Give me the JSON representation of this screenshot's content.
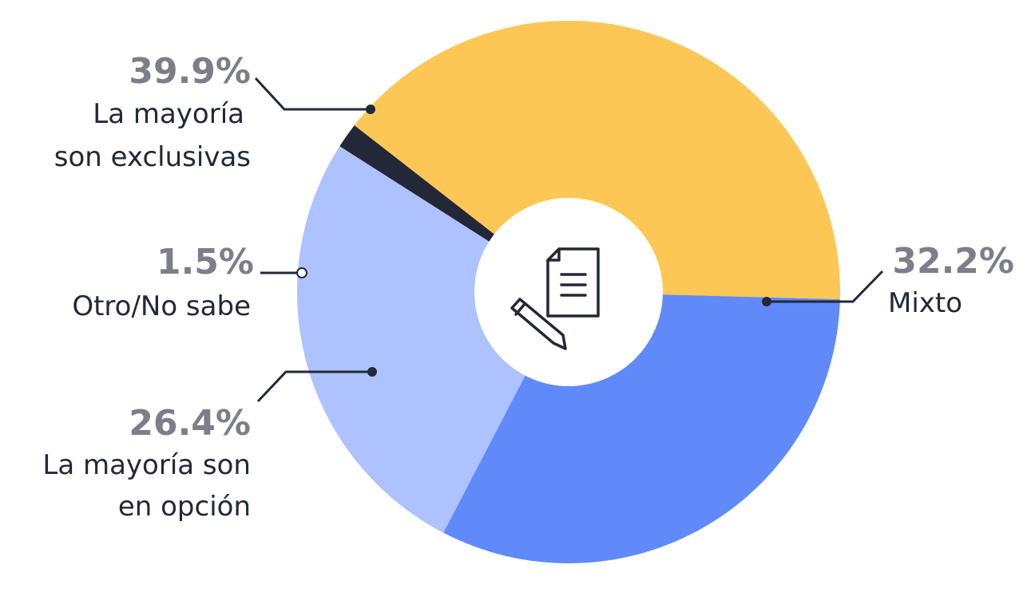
{
  "chart_data": {
    "type": "pie",
    "donut": true,
    "slices": [
      {
        "percent_label": "39.9%",
        "value": 39.9,
        "label_lines": [
          "La mayoría",
          "son exclusivas"
        ],
        "color": "#fcc755"
      },
      {
        "percent_label": "32.2%",
        "value": 32.2,
        "label_lines": [
          "Mixto"
        ],
        "color": "#608afa"
      },
      {
        "percent_label": "26.4%",
        "value": 26.4,
        "label_lines": [
          "La mayoría son",
          "en opción"
        ],
        "color": "#adc2fe"
      },
      {
        "percent_label": "1.5%",
        "value": 1.5,
        "label_lines": [
          "Otro/No sabe"
        ],
        "color": "#232839"
      }
    ],
    "center_icon": "document-pencil-icon",
    "percent_color": "#7d7e89",
    "label_color": "#232839"
  }
}
